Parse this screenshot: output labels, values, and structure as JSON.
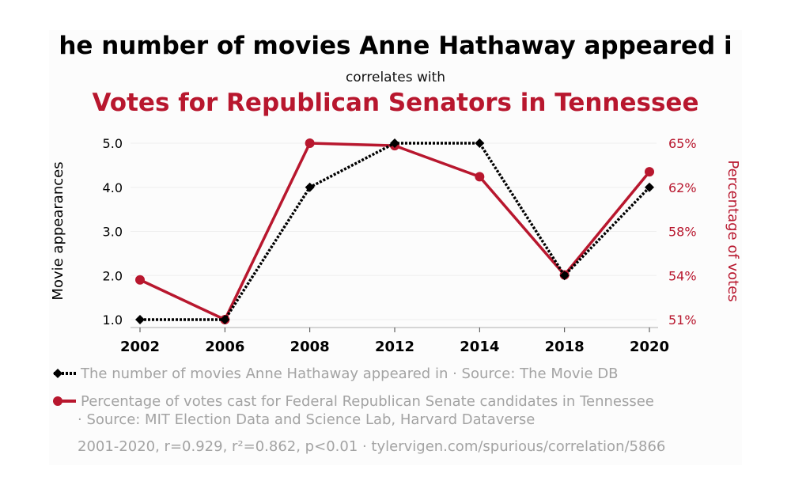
{
  "title_line1": "he number of movies Anne Hathaway appeared i",
  "subtitle": "correlates with",
  "title_line2": "Votes for Republican Senators in Tennessee",
  "colors": {
    "series1": "#000000",
    "series2": "#b8172e",
    "muted": "#a3a3a3"
  },
  "chart_data": {
    "type": "line",
    "categories": [
      "2002",
      "2006",
      "2008",
      "2012",
      "2014",
      "2018",
      "2020"
    ],
    "ylabel_left": "Movie appearances",
    "ylabel_right": "Percentage of votes",
    "left_ticks": [
      "1.0",
      "2.0",
      "3.0",
      "4.0",
      "5.0"
    ],
    "right_ticks": [
      "51%",
      "54%",
      "58%",
      "62%",
      "65%"
    ],
    "left_ylim": [
      1,
      5
    ],
    "right_ylim": [
      50.8,
      65.0
    ],
    "grid": true,
    "series": [
      {
        "axis": "left",
        "marker": "diamond",
        "line": "dotted",
        "values": [
          1,
          1,
          4,
          5,
          5,
          2,
          4
        ]
      },
      {
        "axis": "right",
        "marker": "circle",
        "line": "solid",
        "values": [
          54.0,
          50.8,
          65.0,
          64.8,
          62.3,
          54.4,
          62.7
        ]
      }
    ]
  },
  "legend": [
    {
      "text": "The number of movies Anne Hathaway appeared in · Source: The Movie DB"
    },
    {
      "text_line1": "Percentage of votes cast for Federal Republican Senate candidates in Tennessee",
      "text_line2": "· Source: MIT Election Data and Science Lab, Harvard Dataverse"
    }
  ],
  "stats": "2001-2020, r=0.929, r²=0.862, p<0.01 · tylervigen.com/spurious/correlation/5866"
}
